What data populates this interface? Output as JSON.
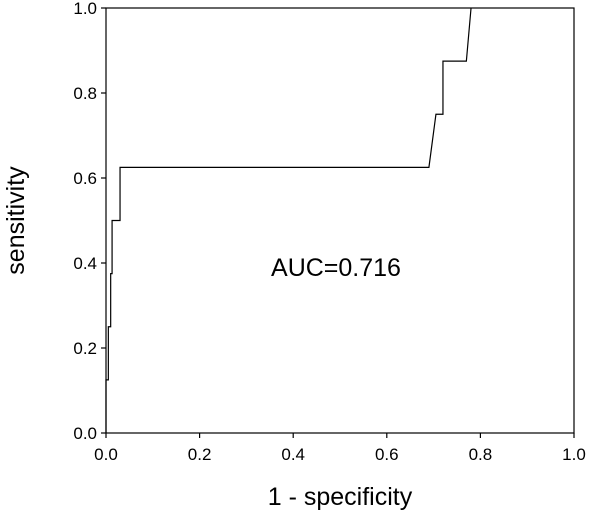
{
  "chart_data": {
    "type": "line",
    "xlabel": "1 - specificity",
    "ylabel": "sensitivity",
    "annotation": "AUC=0.716",
    "xlim": [
      0.0,
      1.0
    ],
    "ylim": [
      0.0,
      1.0
    ],
    "x_ticks": [
      "0.0",
      "0.2",
      "0.4",
      "0.6",
      "0.8",
      "1.0"
    ],
    "y_ticks": [
      "0.0",
      "0.2",
      "0.4",
      "0.6",
      "0.8",
      "1.0"
    ],
    "grid": false,
    "series": [
      {
        "x": [
          0.0,
          0.0,
          0.005,
          0.005,
          0.01,
          0.01,
          0.013,
          0.013,
          0.02,
          0.03,
          0.03,
          0.69,
          0.705,
          0.72,
          0.72,
          0.72,
          0.74,
          0.77,
          0.78
        ],
        "y": [
          0.0,
          0.125,
          0.125,
          0.25,
          0.25,
          0.375,
          0.375,
          0.5,
          0.5,
          0.5,
          0.625,
          0.625,
          0.75,
          0.75,
          0.81,
          0.875,
          0.875,
          0.875,
          1.0
        ]
      }
    ],
    "color": "#000000"
  }
}
